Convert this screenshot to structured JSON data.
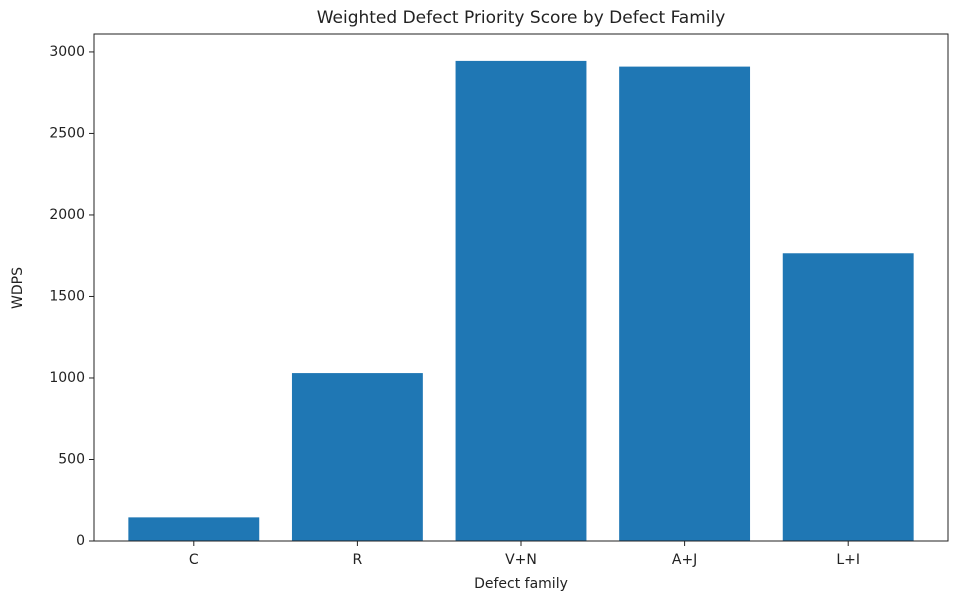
{
  "chart_data": {
    "type": "bar",
    "title": "Weighted Defect Priority Score by Defect Family",
    "x_label": "Defect family",
    "y_label": "WDPS",
    "categories": [
      "C",
      "R",
      "V+N",
      "A+J",
      "L+I"
    ],
    "values": [
      145,
      1030,
      2945,
      2910,
      1765
    ],
    "color": "#1f77b4",
    "ylim": [
      0,
      3110
    ],
    "yticks": [
      0,
      500,
      1000,
      1500,
      2000,
      2500,
      3000
    ],
    "grid": false
  }
}
